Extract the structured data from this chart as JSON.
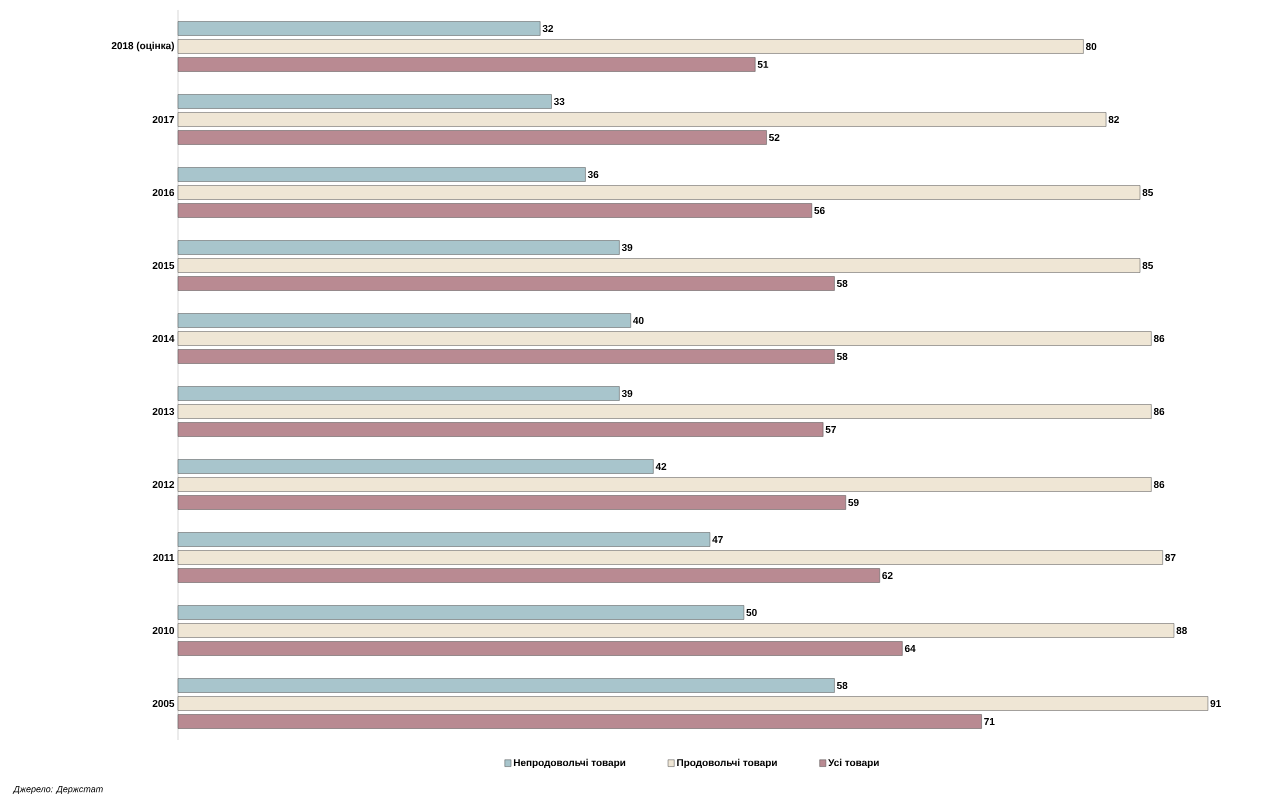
{
  "chart_data": {
    "type": "bar",
    "orientation": "horizontal",
    "categories": [
      "2018 (оцінка)",
      "2017",
      "2016",
      "2015",
      "2014",
      "2013",
      "2012",
      "2011",
      "2010",
      "2005"
    ],
    "series": [
      {
        "name": "Непродовольчі товари",
        "color": "#a8c5cc",
        "values": [
          32,
          33,
          36,
          39,
          40,
          39,
          42,
          47,
          50,
          58
        ]
      },
      {
        "name": "Продовольчі товари",
        "color": "#efe6d5",
        "values": [
          80,
          82,
          85,
          85,
          86,
          86,
          86,
          87,
          88,
          91
        ]
      },
      {
        "name": "Усі товари",
        "color": "#b98a92",
        "values": [
          51,
          52,
          56,
          58,
          58,
          57,
          59,
          62,
          64,
          71
        ]
      }
    ],
    "tick_labels": "y",
    "data_labels": true,
    "legend": "bottom",
    "annotations": [
      "Джерело: Держстат"
    ]
  }
}
